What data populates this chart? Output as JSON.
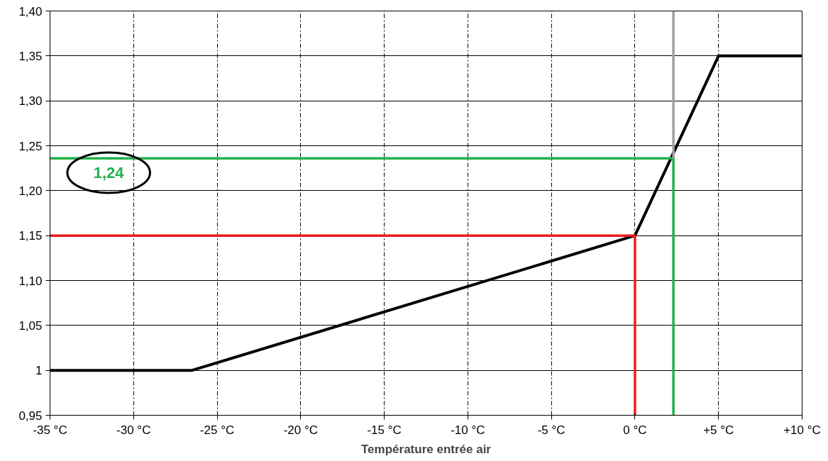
{
  "chart_data": {
    "type": "line",
    "xlabel": "Température entrée air",
    "xlim": [
      -35,
      10
    ],
    "ylim": [
      0.95,
      1.4
    ],
    "xticks": [
      {
        "value": -35,
        "label": "-35 °C"
      },
      {
        "value": -30,
        "label": "-30 °C"
      },
      {
        "value": -25,
        "label": "-25 °C"
      },
      {
        "value": -20,
        "label": "-20 °C"
      },
      {
        "value": -15,
        "label": "-15 °C"
      },
      {
        "value": -10,
        "label": "-10 °C"
      },
      {
        "value": -5,
        "label": "-5 °C"
      },
      {
        "value": 0,
        "label": "0 °C"
      },
      {
        "value": 5,
        "label": "+5 °C"
      },
      {
        "value": 10,
        "label": "+10 °C"
      }
    ],
    "yticks": [
      {
        "value": 0.95,
        "label": "0,95"
      },
      {
        "value": 1,
        "label": "1"
      },
      {
        "value": 1.05,
        "label": "1,05"
      },
      {
        "value": 1.1,
        "label": "1,10"
      },
      {
        "value": 1.15,
        "label": "1,15"
      },
      {
        "value": 1.2,
        "label": "1,20"
      },
      {
        "value": 1.25,
        "label": "1,25"
      },
      {
        "value": 1.3,
        "label": "1,30"
      },
      {
        "value": 1.35,
        "label": "1,35"
      },
      {
        "value": 1.4,
        "label": "1,40"
      }
    ],
    "grid": true,
    "marker": "none",
    "line_style": "solid",
    "series": [
      {
        "color": "#000000",
        "x": [
          -35,
          -26.5,
          0,
          5,
          10
        ],
        "values": [
          1.0,
          1.0,
          1.15,
          1.35,
          1.35
        ]
      },
      {
        "color": "#ee1c1c",
        "x": [
          -35,
          0,
          0
        ],
        "values": [
          1.15,
          1.15,
          0.95
        ]
      },
      {
        "color": "#22b14c",
        "x": [
          -35,
          2.3,
          2.3
        ],
        "values": [
          1.236,
          1.236,
          0.95
        ]
      },
      {
        "color": "#a0a0a0",
        "x": [
          2.3,
          2.3
        ],
        "values": [
          1.236,
          1.4
        ]
      }
    ],
    "annotations": [
      "1,24"
    ]
  }
}
